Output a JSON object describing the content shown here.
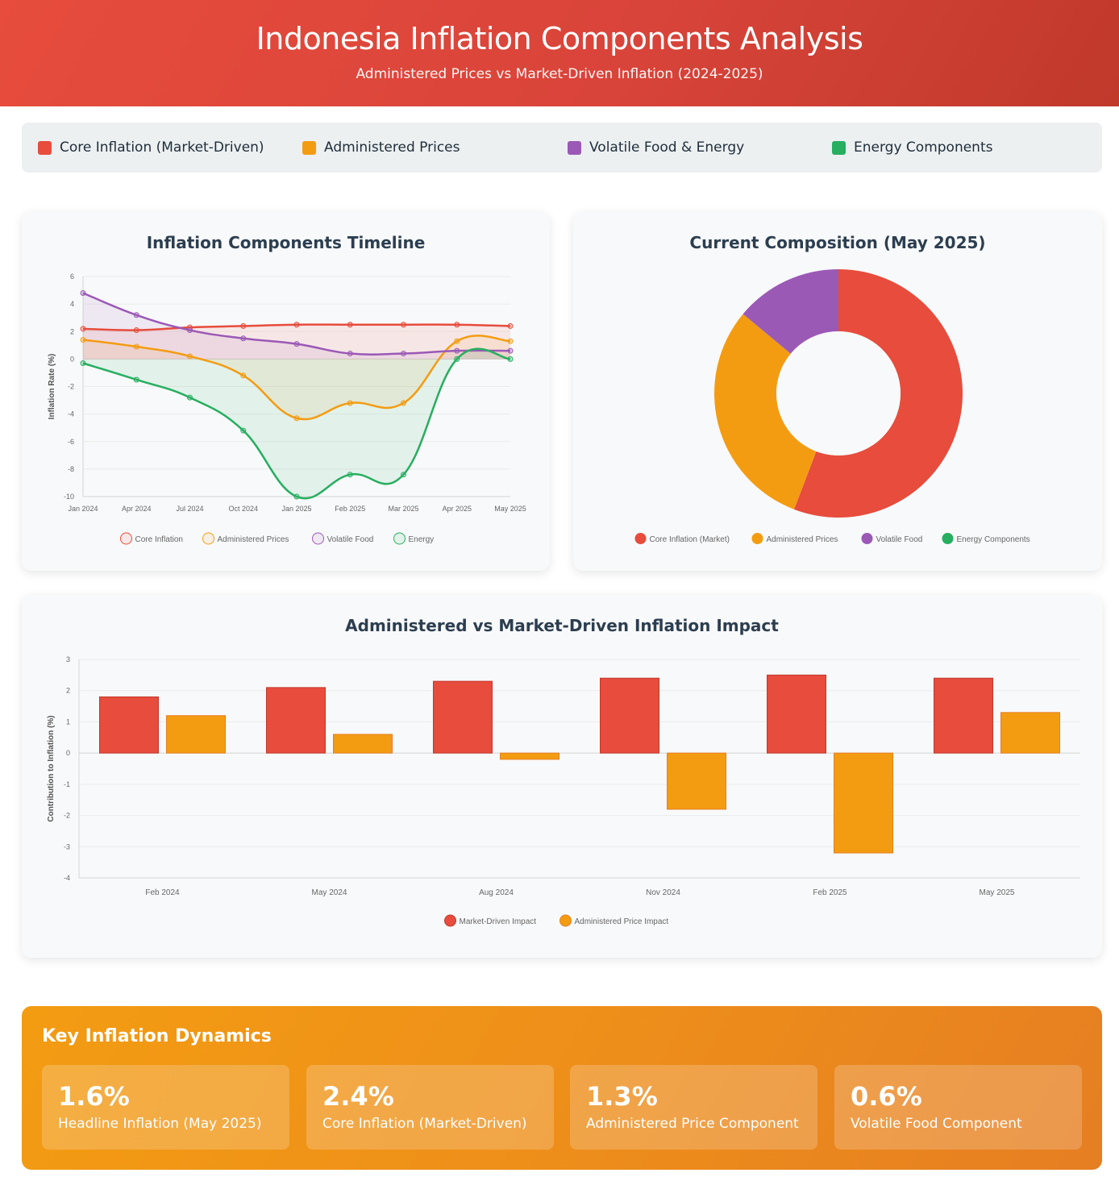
{
  "header": {
    "title": "Indonesia Inflation Components Analysis",
    "subtitle": "Administered Prices vs Market-Driven Inflation (2024-2025)"
  },
  "legend": [
    {
      "label": "Core Inflation (Market-Driven)",
      "color": "#e74c3c"
    },
    {
      "label": "Administered Prices",
      "color": "#f39c12"
    },
    {
      "label": "Volatile Food & Energy",
      "color": "#9b59b6"
    },
    {
      "label": "Energy Components",
      "color": "#27ae60"
    }
  ],
  "timeline": {
    "title": "Inflation Components Timeline"
  },
  "composition": {
    "title": "Current Composition (May 2025)"
  },
  "impact": {
    "title": "Administered vs Market-Driven Inflation Impact"
  },
  "chart_data": [
    {
      "type": "line",
      "title": "Inflation Components Timeline",
      "ylabel": "Inflation Rate (%)",
      "ylim": [
        -10,
        6
      ],
      "yticks": [
        6,
        4,
        2,
        0,
        -2,
        -4,
        -6,
        -8,
        -10
      ],
      "categories": [
        "Jan 2024",
        "Apr 2024",
        "Jul 2024",
        "Oct 2024",
        "Jan 2025",
        "Feb 2025",
        "Mar 2025",
        "Apr 2025",
        "May 2025"
      ],
      "series": [
        {
          "name": "Core Inflation",
          "color": "#e74c3c",
          "values": [
            2.2,
            2.1,
            2.3,
            2.4,
            2.5,
            2.5,
            2.5,
            2.5,
            2.4
          ]
        },
        {
          "name": "Administered Prices",
          "color": "#f39c12",
          "values": [
            1.4,
            0.9,
            0.2,
            -1.2,
            -4.3,
            -3.2,
            -3.2,
            1.3,
            1.3
          ]
        },
        {
          "name": "Volatile Food",
          "color": "#9b59b6",
          "values": [
            4.8,
            3.2,
            2.1,
            1.5,
            1.1,
            0.4,
            0.4,
            0.6,
            0.6
          ]
        },
        {
          "name": "Energy",
          "color": "#27ae60",
          "values": [
            -0.3,
            -1.5,
            -2.8,
            -5.2,
            -10.0,
            -8.4,
            -8.4,
            0.0,
            0.0
          ]
        }
      ],
      "grid": true,
      "legend_position": "bottom"
    },
    {
      "type": "pie",
      "title": "Current Composition (May 2025)",
      "categories": [
        "Core Inflation (Market)",
        "Administered Prices",
        "Volatile Food",
        "Energy Components"
      ],
      "values": [
        2.4,
        1.3,
        0.6,
        0.0
      ],
      "colors": [
        "#e74c3c",
        "#f39c12",
        "#9b59b6",
        "#27ae60"
      ],
      "legend_position": "bottom"
    },
    {
      "type": "bar",
      "title": "Administered vs Market-Driven Inflation Impact",
      "ylabel": "Contribution to Inflation (%)",
      "ylim": [
        -4,
        3
      ],
      "yticks": [
        3,
        2,
        1,
        0,
        -1,
        -2,
        -3,
        -4
      ],
      "categories": [
        "Feb 2024",
        "May 2024",
        "Aug 2024",
        "Nov 2024",
        "Feb 2025",
        "May 2025"
      ],
      "series": [
        {
          "name": "Market-Driven Impact",
          "color": "#e74c3c",
          "values": [
            1.8,
            2.1,
            2.3,
            2.4,
            2.5,
            2.4
          ]
        },
        {
          "name": "Administered Price Impact",
          "color": "#f39c12",
          "values": [
            1.2,
            0.6,
            -0.2,
            -1.8,
            -3.2,
            1.3
          ]
        }
      ],
      "grid": true,
      "legend_position": "bottom"
    }
  ],
  "dynamics": {
    "title": "Key Inflation Dynamics",
    "stats": [
      {
        "value": "1.6%",
        "label": "Headline Inflation (May 2025)"
      },
      {
        "value": "2.4%",
        "label": "Core Inflation (Market-Driven)"
      },
      {
        "value": "1.3%",
        "label": "Administered Price Component"
      },
      {
        "value": "0.6%",
        "label": "Volatile Food Component"
      }
    ]
  }
}
